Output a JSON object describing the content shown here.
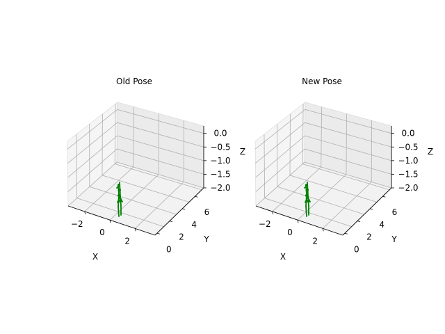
{
  "chart_data": [
    {
      "type": "scatter3d",
      "title": "Old Pose",
      "xlabel": "X",
      "ylabel": "Y",
      "zlabel": "Z",
      "xticks": [
        "−2",
        "0",
        "2"
      ],
      "yticks": [
        "0",
        "2",
        "4",
        "6"
      ],
      "zticks": [
        "0.0",
        "−0.5",
        "−1.0",
        "−1.5",
        "−2.0"
      ],
      "xlim": [
        -3.6,
        3.6
      ],
      "ylim": [
        -0.3,
        7.2
      ],
      "zlim": [
        -2.0,
        0.2
      ],
      "grid": true,
      "series_color": "#008000",
      "figure": [
        [
          0,
          0.9,
          -0.7
        ],
        [
          0.1,
          1.1,
          -1.6
        ],
        [
          0.05,
          1.0,
          -2.3
        ]
      ]
    },
    {
      "type": "scatter3d",
      "title": "New Pose",
      "xlabel": "X",
      "ylabel": "Y",
      "zlabel": "Z",
      "xticks": [
        "−2",
        "0",
        "2"
      ],
      "yticks": [
        "0",
        "2",
        "4",
        "6"
      ],
      "zticks": [
        "0.0",
        "−0.5",
        "−1.0",
        "−1.5",
        "−2.0"
      ],
      "xlim": [
        -3.6,
        3.6
      ],
      "ylim": [
        -0.3,
        7.2
      ],
      "zlim": [
        -2.0,
        0.2
      ],
      "grid": true,
      "series_color": "#008000",
      "figure": [
        [
          0,
          0.9,
          -0.7
        ],
        [
          0.1,
          1.1,
          -1.6
        ],
        [
          0.05,
          1.0,
          -2.3
        ]
      ]
    }
  ]
}
